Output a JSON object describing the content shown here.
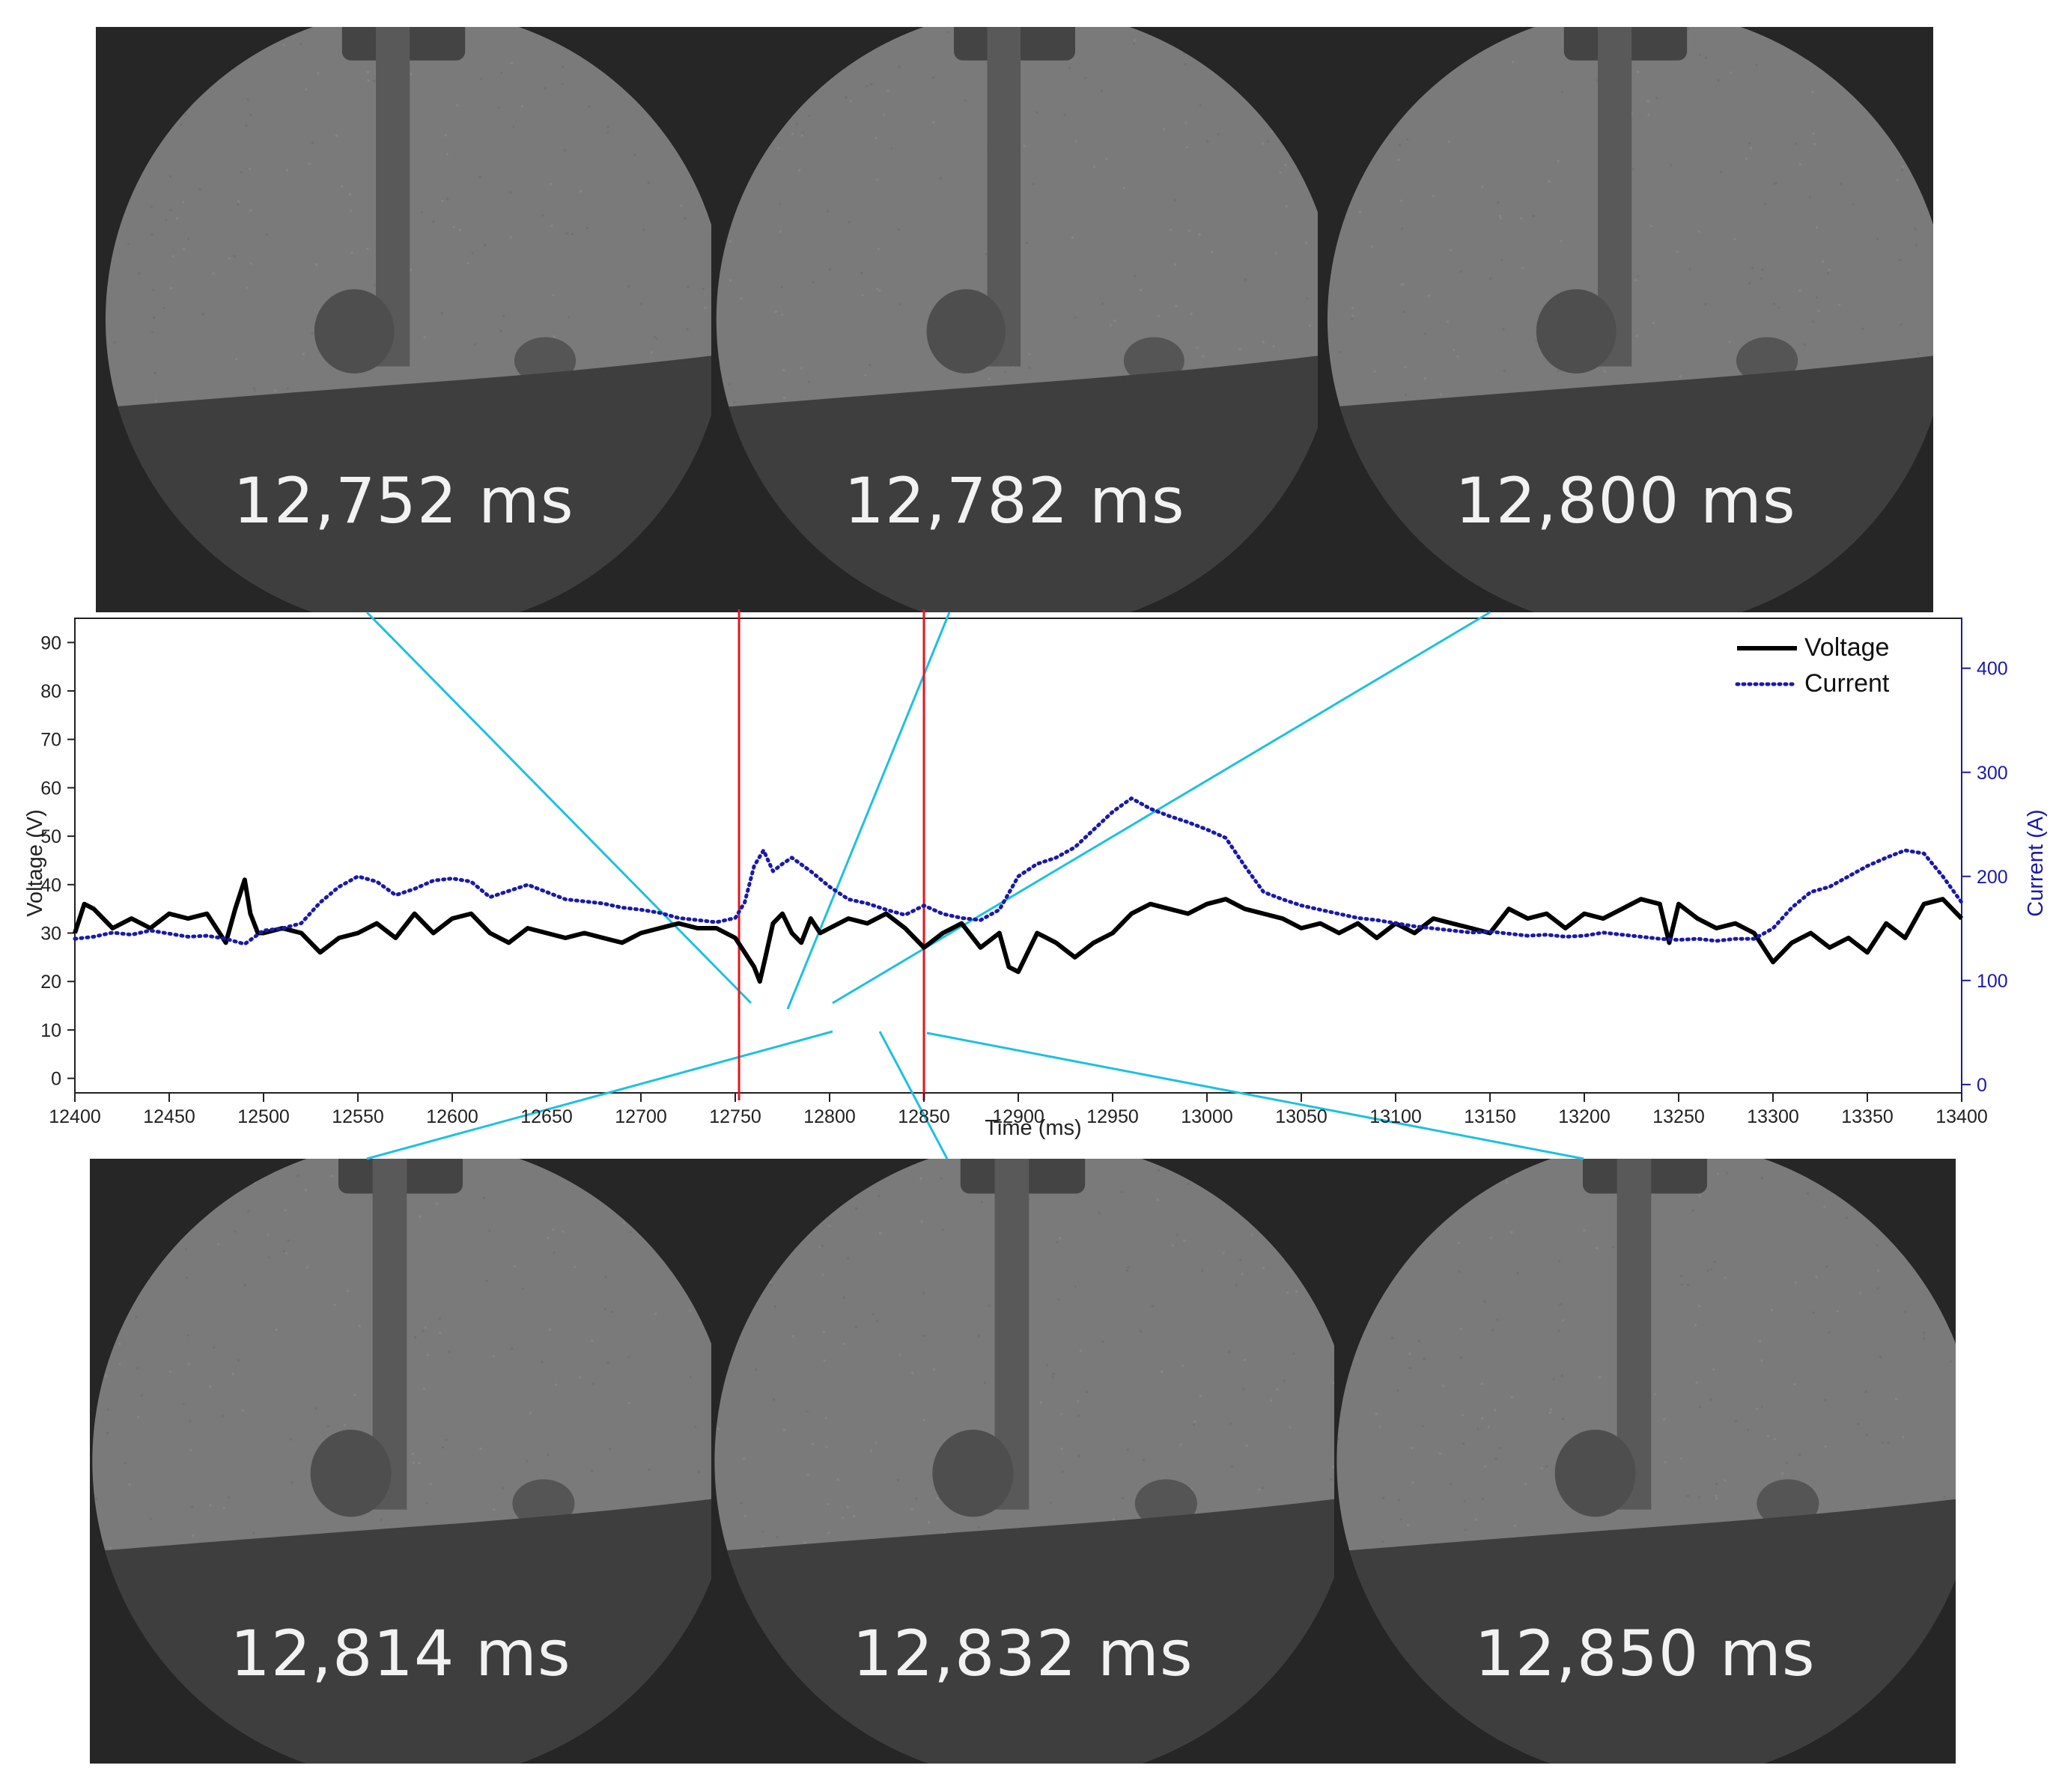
{
  "frames": {
    "top": [
      {
        "label": "12,752 ms",
        "t": 12752
      },
      {
        "label": "12,782 ms",
        "t": 12782
      },
      {
        "label": "12,800 ms",
        "t": 12800
      }
    ],
    "bottom": [
      {
        "label": "12,814 ms",
        "t": 12814
      },
      {
        "label": "12,832 ms",
        "t": 12832
      },
      {
        "label": "12,850 ms",
        "t": 12850
      }
    ]
  },
  "colors": {
    "voltage": "#000000",
    "current": "#1a1aa8",
    "markers": "#e8141c",
    "connectors": "#1ec0e0",
    "frame_bg": "#262626",
    "pool": "#3e3e3e",
    "field": "#7a7a7a"
  },
  "chart_data": {
    "type": "line",
    "title": "",
    "xlabel": "Time (ms)",
    "ylabel": "Voltage (V)",
    "y2label": "Current (A)",
    "xlim": [
      12400,
      13400
    ],
    "ylim": [
      -3,
      95
    ],
    "y2lim": [
      -8,
      448
    ],
    "xticks": [
      12400,
      12450,
      12500,
      12550,
      12600,
      12650,
      12700,
      12750,
      12800,
      12850,
      12900,
      12950,
      13000,
      13050,
      13100,
      13150,
      13200,
      13250,
      13300,
      13350,
      13400
    ],
    "yticks": [
      0,
      10,
      20,
      30,
      40,
      50,
      60,
      70,
      80,
      90
    ],
    "y2ticks": [
      0,
      100,
      200,
      300,
      400
    ],
    "legend_position": "top-right",
    "markers": [
      12752,
      12850
    ],
    "series": [
      {
        "name": "Voltage",
        "axis": "left",
        "style": "solid",
        "x": [
          12400,
          12405,
          12410,
          12420,
          12430,
          12440,
          12450,
          12460,
          12470,
          12480,
          12485,
          12490,
          12493,
          12497,
          12500,
          12510,
          12520,
          12530,
          12540,
          12550,
          12560,
          12570,
          12580,
          12590,
          12600,
          12610,
          12620,
          12630,
          12640,
          12650,
          12660,
          12670,
          12680,
          12690,
          12700,
          12710,
          12720,
          12730,
          12740,
          12745,
          12750,
          12755,
          12760,
          12763,
          12766,
          12770,
          12775,
          12780,
          12785,
          12790,
          12795,
          12800,
          12810,
          12820,
          12830,
          12840,
          12850,
          12860,
          12870,
          12880,
          12890,
          12895,
          12900,
          12910,
          12920,
          12930,
          12940,
          12950,
          12960,
          12970,
          12980,
          12990,
          13000,
          13010,
          13020,
          13030,
          13040,
          13050,
          13060,
          13070,
          13080,
          13090,
          13100,
          13110,
          13120,
          13130,
          13140,
          13150,
          13160,
          13170,
          13180,
          13190,
          13200,
          13210,
          13220,
          13230,
          13240,
          13245,
          13250,
          13260,
          13270,
          13280,
          13290,
          13300,
          13310,
          13320,
          13330,
          13340,
          13350,
          13360,
          13370,
          13380,
          13390,
          13400
        ],
        "y": [
          30,
          36,
          35,
          31,
          33,
          31,
          34,
          33,
          34,
          28,
          35,
          41,
          34,
          30,
          30,
          31,
          30,
          26,
          29,
          30,
          32,
          29,
          34,
          30,
          33,
          34,
          30,
          28,
          31,
          30,
          29,
          30,
          29,
          28,
          30,
          31,
          32,
          31,
          31,
          30,
          29,
          26,
          23,
          20,
          25,
          32,
          34,
          30,
          28,
          33,
          30,
          31,
          33,
          32,
          34,
          31,
          27,
          30,
          32,
          27,
          30,
          23,
          22,
          30,
          28,
          25,
          28,
          30,
          34,
          36,
          35,
          34,
          36,
          37,
          35,
          34,
          33,
          31,
          32,
          30,
          32,
          29,
          32,
          30,
          33,
          32,
          31,
          30,
          35,
          33,
          34,
          31,
          34,
          33,
          35,
          37,
          36,
          28,
          36,
          33,
          31,
          32,
          30,
          24,
          28,
          30,
          27,
          29,
          26,
          32,
          29,
          36,
          37,
          33
        ]
      },
      {
        "name": "Current",
        "axis": "right",
        "style": "dotted",
        "x": [
          12400,
          12410,
          12420,
          12430,
          12440,
          12450,
          12460,
          12470,
          12480,
          12490,
          12500,
          12510,
          12520,
          12530,
          12540,
          12550,
          12560,
          12570,
          12580,
          12590,
          12600,
          12610,
          12620,
          12630,
          12640,
          12650,
          12660,
          12670,
          12680,
          12690,
          12700,
          12710,
          12720,
          12730,
          12740,
          12750,
          12755,
          12760,
          12765,
          12770,
          12775,
          12780,
          12790,
          12800,
          12810,
          12820,
          12830,
          12840,
          12850,
          12860,
          12870,
          12880,
          12890,
          12900,
          12910,
          12920,
          12930,
          12940,
          12950,
          12960,
          12970,
          12980,
          12990,
          13000,
          13010,
          13020,
          13030,
          13040,
          13050,
          13060,
          13070,
          13080,
          13090,
          13100,
          13110,
          13120,
          13130,
          13140,
          13150,
          13160,
          13170,
          13180,
          13190,
          13200,
          13210,
          13220,
          13230,
          13240,
          13250,
          13260,
          13270,
          13280,
          13290,
          13300,
          13310,
          13320,
          13330,
          13340,
          13350,
          13360,
          13370,
          13380,
          13390,
          13400
        ],
        "y": [
          140,
          142,
          146,
          144,
          148,
          145,
          142,
          143,
          140,
          135,
          148,
          150,
          155,
          175,
          190,
          200,
          195,
          182,
          188,
          196,
          198,
          195,
          180,
          186,
          192,
          185,
          178,
          176,
          174,
          170,
          168,
          165,
          160,
          158,
          156,
          160,
          175,
          210,
          225,
          205,
          212,
          218,
          205,
          190,
          178,
          174,
          168,
          163,
          172,
          164,
          160,
          158,
          168,
          200,
          212,
          218,
          228,
          245,
          262,
          275,
          265,
          258,
          252,
          245,
          237,
          210,
          185,
          178,
          172,
          168,
          164,
          160,
          158,
          155,
          152,
          150,
          148,
          146,
          147,
          145,
          143,
          144,
          142,
          143,
          146,
          144,
          142,
          140,
          139,
          140,
          138,
          140,
          140,
          150,
          170,
          185,
          190,
          200,
          210,
          218,
          225,
          222,
          200,
          175
        ]
      }
    ]
  }
}
